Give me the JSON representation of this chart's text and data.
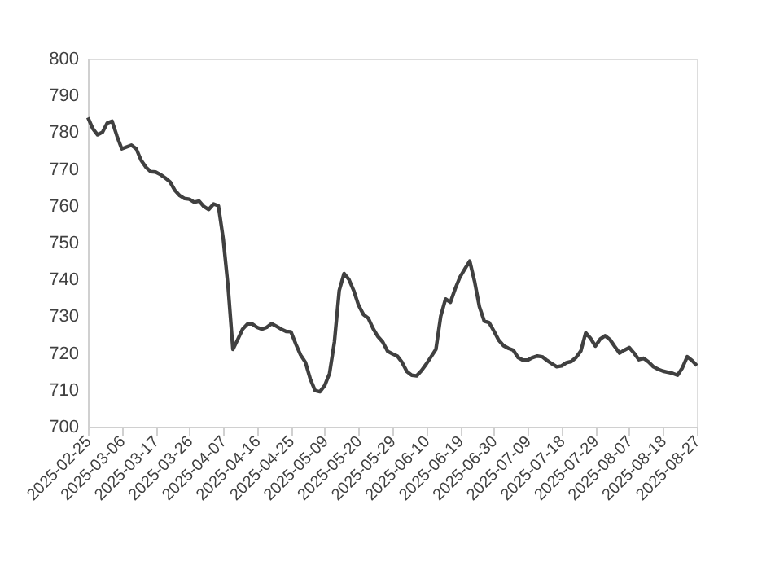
{
  "chart_data": {
    "type": "line",
    "categories": [
      "2025-02-25",
      null,
      null,
      null,
      null,
      null,
      null,
      "2025-03-06",
      null,
      null,
      null,
      null,
      null,
      null,
      "2025-03-17",
      null,
      null,
      null,
      null,
      null,
      null,
      "2025-03-26",
      null,
      null,
      null,
      null,
      null,
      null,
      "2025-04-07",
      null,
      null,
      null,
      null,
      null,
      null,
      "2025-04-16",
      null,
      null,
      null,
      null,
      null,
      null,
      "2025-04-25",
      null,
      null,
      null,
      null,
      null,
      null,
      "2025-05-09",
      null,
      null,
      null,
      null,
      null,
      null,
      "2025-05-20",
      null,
      null,
      null,
      null,
      null,
      null,
      "2025-05-29",
      null,
      null,
      null,
      null,
      null,
      null,
      "2025-06-10",
      null,
      null,
      null,
      null,
      null,
      null,
      "2025-06-19",
      null,
      null,
      null,
      null,
      null,
      null,
      "2025-06-30",
      null,
      null,
      null,
      null,
      null,
      null,
      "2025-07-09",
      null,
      null,
      null,
      null,
      null,
      null,
      "2025-07-18",
      null,
      null,
      null,
      null,
      null,
      null,
      "2025-07-29",
      null,
      null,
      null,
      null,
      null,
      null,
      "2025-08-07",
      null,
      null,
      null,
      null,
      null,
      null,
      "2025-08-18",
      null,
      null,
      null,
      null,
      null,
      null,
      "2025-08-27"
    ],
    "series": [
      {
        "color": "#404040",
        "values": [
          784,
          781,
          779.3,
          780,
          782.5,
          783,
          779,
          775.5,
          776,
          776.5,
          775.5,
          772.4,
          770.5,
          769.3,
          769.2,
          768.5,
          767.6,
          766.5,
          764.2,
          762.8,
          762,
          761.8,
          761,
          761.3,
          759.8,
          759,
          760.5,
          760,
          751,
          738,
          721,
          723.7,
          726.5,
          727.9,
          727.9,
          727,
          726.5,
          727,
          728,
          727.3,
          726.5,
          725.9,
          725.8,
          722.5,
          719.5,
          717.5,
          713,
          709.8,
          709.5,
          711.2,
          714.5,
          723,
          737,
          741.6,
          740,
          737,
          733,
          730.5,
          729.5,
          726.7,
          724.5,
          723,
          720.5,
          719.8,
          719.2,
          717.5,
          715,
          714,
          713.8,
          715.2,
          717,
          719,
          721,
          730,
          734.7,
          733.8,
          737.5,
          740.7,
          742.9,
          745,
          739.5,
          732.6,
          728.7,
          728.3,
          726,
          723.5,
          722,
          721.3,
          720.8,
          718.8,
          718.1,
          718.1,
          718.8,
          719.2,
          719,
          718,
          717.1,
          716.3,
          716.5,
          717.4,
          717.7,
          718.8,
          720.6,
          725.5,
          724,
          721.9,
          723.8,
          724.7,
          723.7,
          721.8,
          720,
          720.8,
          721.5,
          720,
          718.2,
          718.6,
          717.6,
          716.3,
          715.6,
          715.1,
          714.8,
          714.5,
          714,
          716,
          719,
          718,
          716.6
        ]
      }
    ],
    "ylim": [
      700,
      800
    ],
    "yticks": [
      700,
      710,
      720,
      730,
      740,
      750,
      760,
      770,
      780,
      790,
      800
    ],
    "grid": false,
    "marker": "none",
    "line_style": "solid"
  }
}
